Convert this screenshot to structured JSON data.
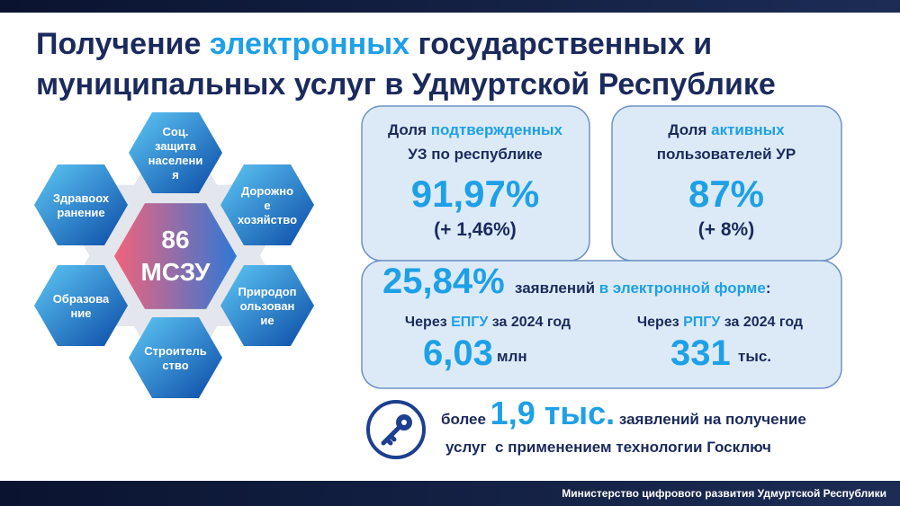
{
  "title": {
    "line1": [
      "Получение ",
      "электронных",
      " государственных и"
    ],
    "line2": "муниципальных услуг в Удмуртской Республике"
  },
  "center": {
    "number": "86",
    "label": "МСЗУ"
  },
  "sectors": [
    {
      "lines": [
        "Соц.",
        "защита",
        "населени",
        "я"
      ]
    },
    {
      "lines": [
        "Дорожно",
        "е",
        "хозяйство"
      ]
    },
    {
      "lines": [
        "Природоп",
        "ользован",
        "ие"
      ]
    },
    {
      "lines": [
        "Строитель",
        "ство"
      ]
    },
    {
      "lines": [
        "Образова",
        "ние"
      ]
    },
    {
      "lines": [
        "Здравоох",
        "ранение"
      ]
    }
  ],
  "cards": [
    {
      "label": [
        "Доля ",
        "подтвержденных"
      ],
      "label2": "УЗ по республике",
      "value": "91,97%",
      "change": "(+ 1,46%)"
    },
    {
      "label": [
        "Доля ",
        "активных"
      ],
      "label2": "пользователей УР",
      "value": "87%",
      "change": "(+ 8%)"
    }
  ],
  "applications": {
    "value": "25,84%",
    "text": [
      "заявлений ",
      "в электронной форме",
      ":"
    ],
    "channels": [
      {
        "label": [
          "Через ",
          "ЕПГУ",
          " за 2024 год"
        ],
        "value": "6,03",
        "unit": "млн"
      },
      {
        "label": [
          "Через ",
          "РПГУ",
          " за 2024 год"
        ],
        "value": "331",
        "unit": "тыс."
      }
    ]
  },
  "goskey": {
    "line1": [
      "более ",
      "1,9 тыс.",
      " заявлений на получение"
    ],
    "line2": "услуг  с применением технологии Госключ"
  },
  "footer": "Министерство цифрового развития Удмуртской Республики"
}
